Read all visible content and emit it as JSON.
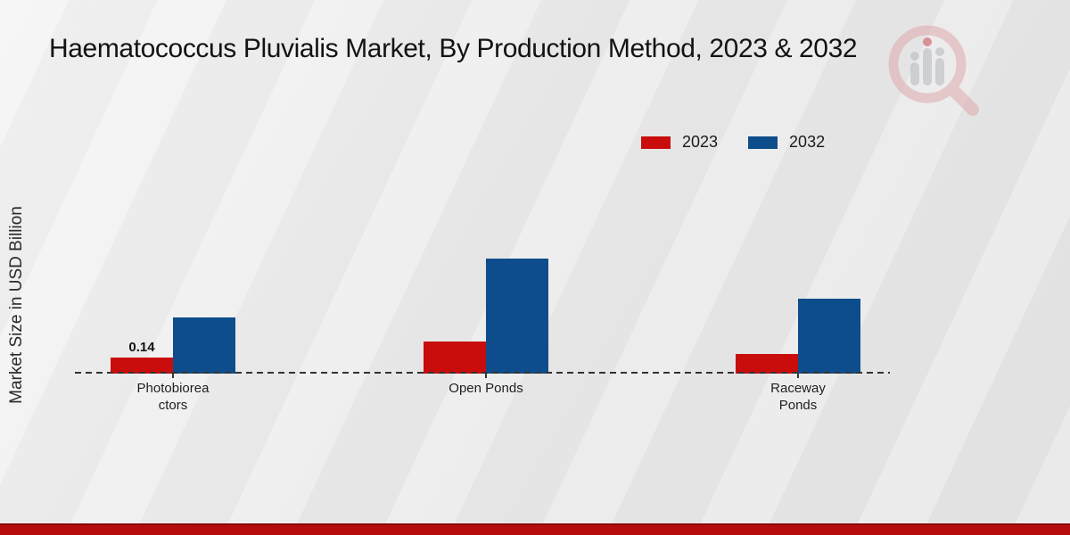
{
  "title": "Haematococcus Pluvialis Market, By Production Method, 2023 & 2032",
  "y_axis_label": "Market Size in USD Billion",
  "legend": {
    "items": [
      {
        "label": "2023",
        "color": "#c90d0d"
      },
      {
        "label": "2032",
        "color": "#0e4d8c"
      }
    ]
  },
  "chart_data": {
    "type": "bar",
    "title": "Haematococcus Pluvialis Market, By Production Method, 2023 & 2032",
    "ylabel": "Market Size in USD Billion",
    "xlabel": "",
    "categories": [
      "Photobioreactors",
      "Open Ponds",
      "Raceway Ponds"
    ],
    "category_display_lines": [
      [
        "Photobiorea",
        "ctors"
      ],
      [
        "Open Ponds"
      ],
      [
        "Raceway",
        "Ponds"
      ]
    ],
    "series": [
      {
        "name": "2023",
        "color": "#c90d0d",
        "values": [
          0.14,
          0.28,
          0.17
        ]
      },
      {
        "name": "2032",
        "color": "#0e4d8c",
        "values": [
          0.49,
          1.0,
          0.65
        ]
      }
    ],
    "bar_labels": [
      {
        "series": "2023",
        "category_index": 0,
        "text": "0.14"
      }
    ],
    "ylim": [
      0,
      1.55
    ],
    "grid": false,
    "legend_position": "top-right",
    "baseline_style": "dashed",
    "units": "USD Billion"
  },
  "colors": {
    "red_2023": "#c90d0d",
    "blue_2032": "#0e4d8c",
    "bottom_strip": "#b60c0c",
    "background": "#e9e9e9",
    "watermark_pink": "#dfa9ad",
    "watermark_gray": "#b4b8bf"
  }
}
